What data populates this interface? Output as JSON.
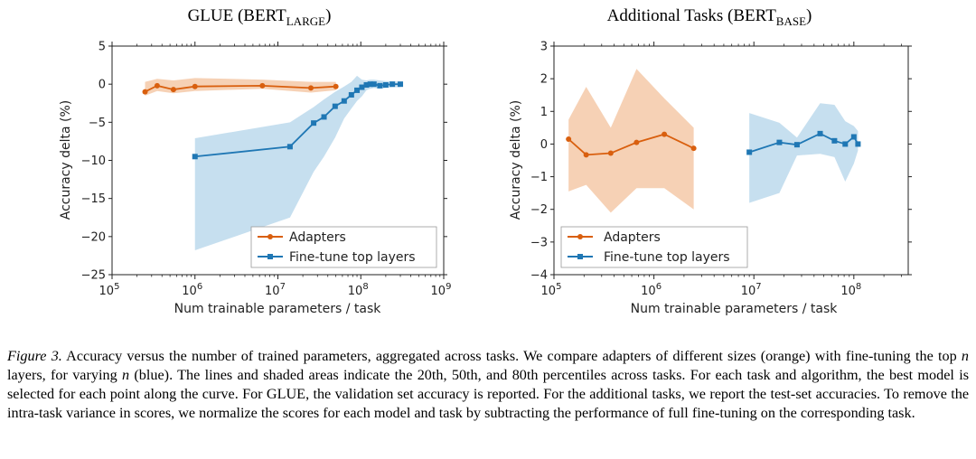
{
  "colors": {
    "adapters": "#d95f0e",
    "finetune": "#1f77b4",
    "adapters_band": "#f4c9a8",
    "finetune_band": "#bcd9ec"
  },
  "chart_data": [
    {
      "type": "line",
      "title_main": "GLUE (BERT",
      "title_sub": "LARGE",
      "title_end": ")",
      "xlabel": "Num trainable parameters / task",
      "ylabel": "Accuracy delta (%)",
      "xscale": "log",
      "xlim": [
        100000,
        1000000000
      ],
      "ylim": [
        -25,
        5
      ],
      "yticks": [
        5,
        0,
        -5,
        -10,
        -15,
        -20,
        -25
      ],
      "ytick_labels": [
        "5",
        "0",
        "−5",
        "−10",
        "−15",
        "−20",
        "−25"
      ],
      "xticks": [
        100000,
        1000000,
        10000000,
        100000000,
        1000000000
      ],
      "xtick_base": [
        "10",
        "10",
        "10",
        "10",
        "10"
      ],
      "xtick_exp": [
        "5",
        "6",
        "7",
        "8",
        "9"
      ],
      "legend_position": "lower-right",
      "series": [
        {
          "name": "Adapters",
          "marker": "circle",
          "x": [
            250000,
            350000,
            550000,
            1000000,
            6500000,
            25000000,
            50000000
          ],
          "y": [
            -1.0,
            -0.2,
            -0.7,
            -0.3,
            -0.2,
            -0.5,
            -0.3
          ],
          "y_low": [
            -1.5,
            -0.9,
            -1.2,
            -0.9,
            -0.6,
            -1.1,
            -0.8
          ],
          "y_high": [
            0.3,
            0.7,
            0.5,
            0.8,
            0.6,
            0.3,
            0.3
          ]
        },
        {
          "name": "Fine-tune top layers",
          "marker": "square",
          "x": [
            1000000,
            14000000,
            27000000,
            36000000,
            49000000,
            63000000,
            77000000,
            90000000,
            103000000,
            117000000,
            130000000,
            144000000,
            170000000,
            200000000,
            240000000,
            300000000
          ],
          "y": [
            -9.5,
            -8.2,
            -5.1,
            -4.3,
            -2.9,
            -2.2,
            -1.4,
            -0.8,
            -0.4,
            -0.1,
            0.0,
            0.0,
            -0.2,
            -0.1,
            0.0,
            0.0
          ],
          "y_low": [
            -21.8,
            -17.5,
            -11.5,
            -9.5,
            -7.0,
            -4.5,
            -3.2,
            -2.2,
            -1.6,
            -0.8,
            -0.6,
            -0.5,
            -0.6,
            -0.5,
            -0.4,
            -0.4
          ],
          "y_high": [
            -7.1,
            -5.0,
            -3.0,
            -2.0,
            -1.0,
            -0.3,
            0.3,
            1.1,
            0.6,
            0.5,
            0.6,
            0.6,
            0.5,
            0.4,
            0.4,
            0.3
          ]
        }
      ]
    },
    {
      "type": "line",
      "title_main": "Additional Tasks (BERT",
      "title_sub": "BASE",
      "title_end": ")",
      "xlabel": "Num trainable parameters / task",
      "ylabel": "Accuracy delta (%)",
      "xscale": "log",
      "xlim": [
        100000,
        350000000
      ],
      "ylim": [
        -4,
        3
      ],
      "yticks": [
        3,
        2,
        1,
        0,
        -1,
        -2,
        -3,
        -4
      ],
      "ytick_labels": [
        "3",
        "2",
        "1",
        "0",
        "−1",
        "−2",
        "−3",
        "−4"
      ],
      "xticks": [
        100000,
        1000000,
        10000000,
        100000000
      ],
      "xtick_base": [
        "10",
        "10",
        "10",
        "10"
      ],
      "xtick_exp": [
        "5",
        "6",
        "7",
        "8"
      ],
      "legend_position": "lower-left",
      "series": [
        {
          "name": "Adapters",
          "marker": "circle",
          "x": [
            140000,
            210000,
            370000,
            670000,
            1270000,
            2500000
          ],
          "y": [
            0.15,
            -0.33,
            -0.28,
            0.05,
            0.3,
            -0.13
          ],
          "y_low": [
            -1.45,
            -1.25,
            -2.1,
            -1.35,
            -1.35,
            -2.0
          ],
          "y_high": [
            0.75,
            1.75,
            0.5,
            2.3,
            1.4,
            0.5
          ],
          "segment_start": 0
        },
        {
          "name": "Fine-tune top layers",
          "marker": "square",
          "x": [
            9000000,
            18000000,
            27000000,
            46000000,
            64000000,
            82000000,
            100000000,
            110000000
          ],
          "y": [
            -0.25,
            0.05,
            -0.02,
            0.32,
            0.1,
            0.0,
            0.22,
            0.0
          ],
          "y_low": [
            -1.8,
            -1.5,
            -0.35,
            -0.3,
            -0.4,
            -1.15,
            -0.6,
            -0.2
          ],
          "y_high": [
            0.95,
            0.65,
            0.2,
            1.25,
            1.2,
            0.7,
            0.55,
            0.4
          ]
        }
      ]
    }
  ],
  "caption": {
    "label": "Figure 3.",
    "part1": " Accuracy versus the number of trained parameters, aggregated across tasks. We compare adapters of different sizes (orange) with fine-tuning the top ",
    "var1": "n",
    "part2": " layers, for varying ",
    "var2": "n",
    "part3": " (blue). The lines and shaded areas indicate the 20th, 50th, and 80th percentiles across tasks. For each task and algorithm, the best model is selected for each point along the curve. For GLUE, the validation set accuracy is reported. For the additional tasks, we report the test-set accuracies. To remove the intra-task variance in scores, we normalize the scores for each model and task by subtracting the performance of full fine-tuning on the corresponding task."
  }
}
